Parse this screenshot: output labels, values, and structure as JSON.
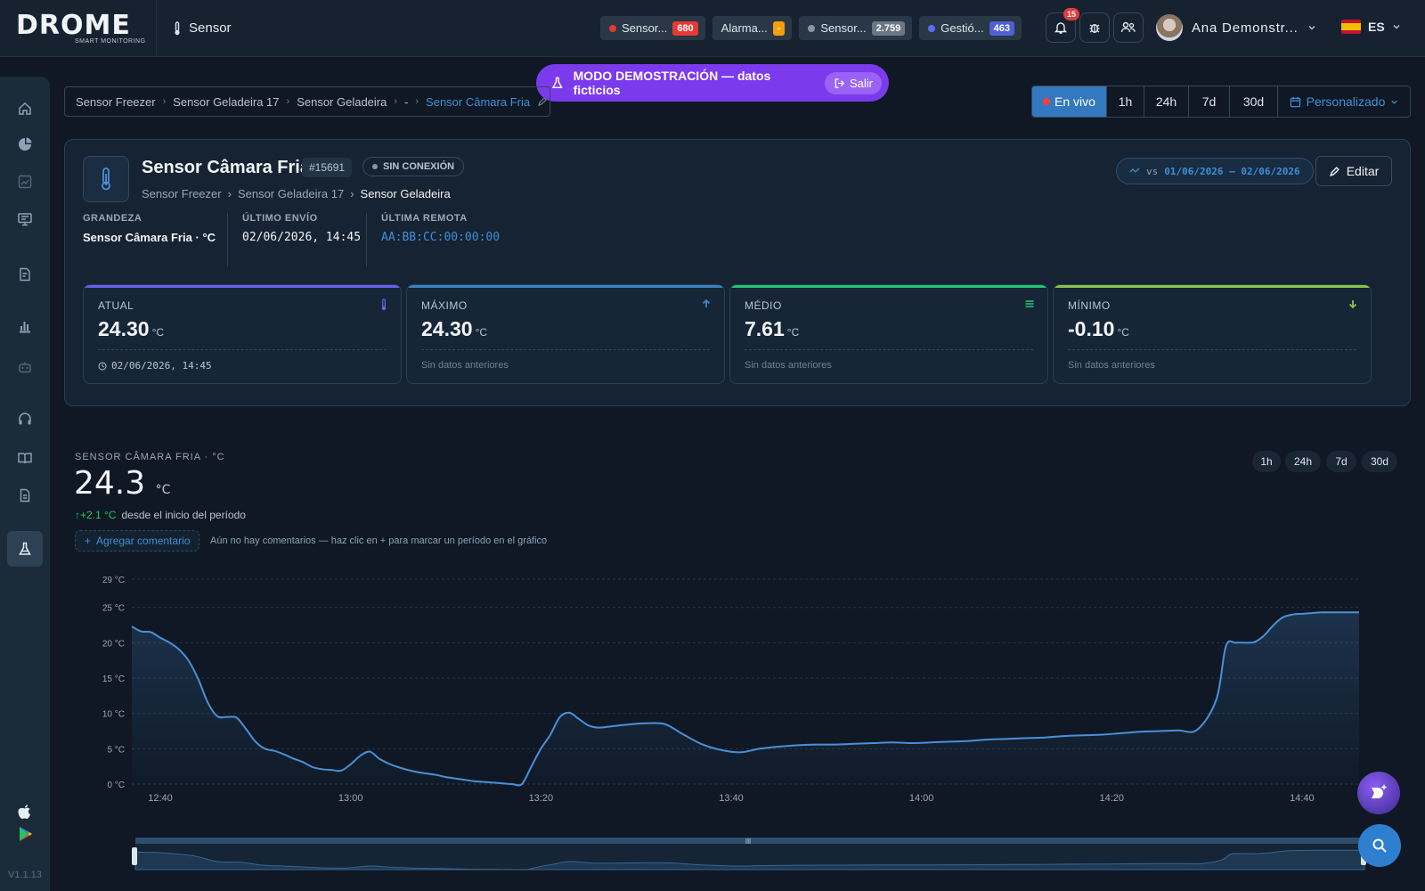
{
  "app": {
    "logo_text": "DROME",
    "logo_sub": "SMART MONITORING",
    "page_title": "Sensor",
    "version": "V1.1.13"
  },
  "header": {
    "pills": [
      {
        "label": "Sensor...",
        "badge": "680",
        "dot": "#e53935",
        "badge_color": "#e53935"
      },
      {
        "label": "Alarma...",
        "badge": "-",
        "dot": "",
        "badge_color": "#f59e0b"
      },
      {
        "label": "Sensor...",
        "badge": "2.759",
        "dot": "#8a96a3",
        "badge_color": "#6b7785"
      },
      {
        "label": "Gestió...",
        "badge": "463",
        "dot": "#5b6cf0",
        "badge_color": "#4f5fd6"
      }
    ],
    "notifications_count": "15",
    "user_name": "Ana Demonstr...",
    "language": "ES"
  },
  "demo_banner": {
    "text": "MODO DEMOSTRACIÓN — datos ficticios",
    "exit_label": "Salir"
  },
  "breadcrumb": [
    "Sensor Freezer",
    "Sensor Geladeira 17",
    "Sensor Geladeira",
    "-",
    "Sensor Câmara Fria"
  ],
  "range": {
    "live_label": "En vivo",
    "options": [
      "1h",
      "24h",
      "7d",
      "30d"
    ],
    "custom_label": "Personalizado"
  },
  "sensor": {
    "name": "Sensor Câmara Fria",
    "id": "#15691",
    "status": "SIN CONEXIÓN",
    "path": [
      "Sensor Freezer",
      "Sensor Geladeira 17",
      "Sensor Geladeira"
    ],
    "compare_prefix": "vs",
    "compare_range": "01/06/2026 — 02/06/2026",
    "edit_label": "Editar",
    "meta": {
      "magnitude_label": "GRANDEZA",
      "magnitude_value": "Sensor Câmara Fria · °C",
      "last_send_label": "ÚLTIMO ENVÍO",
      "last_send_value": "02/06/2026, 14:45",
      "remote_label": "ÚLTIMA REMOTA",
      "remote_value": "AA:BB:CC:00:00:00"
    },
    "stats": [
      {
        "label": "ATUAL",
        "value": "24.30",
        "unit": "°C",
        "foot": "02/06/2026, 14:45",
        "accent": "#6d5cf0",
        "icon": "thermometer-icon"
      },
      {
        "label": "MÁXIMO",
        "value": "24.30",
        "unit": "°C",
        "foot": "Sin datos anteriores",
        "accent": "#3b82c4",
        "icon": "arrow-up-icon"
      },
      {
        "label": "MÉDIO",
        "value": "7.61",
        "unit": "°C",
        "foot": "Sin datos anteriores",
        "accent": "#22c57a",
        "icon": "equals-icon"
      },
      {
        "label": "MÍNIMO",
        "value": "-0.10",
        "unit": "°C",
        "foot": "Sin datos anteriores",
        "accent": "#8bc34a",
        "icon": "arrow-down-icon"
      }
    ]
  },
  "chart_panel": {
    "heading": "SENSOR CÂMARA FRIA · °C",
    "current_value": "24.3",
    "unit": "°C",
    "delta": "+2.1 °C",
    "delta_text": "desde el inicio del período",
    "comment_button": "Agregar comentario",
    "comment_hint": "Aún no hay comentarios — haz clic en + para marcar un período en el gráfico",
    "ranges": [
      "1h",
      "24h",
      "7d",
      "30d"
    ]
  },
  "chart_data": {
    "type": "line",
    "x_ticks": [
      "12:40",
      "13:00",
      "13:20",
      "13:40",
      "14:00",
      "14:20",
      "14:40"
    ],
    "y_ticks": [
      "0 °C",
      "5 °C",
      "10 °C",
      "15 °C",
      "20 °C",
      "25 °C",
      "29 °C"
    ],
    "ylim": [
      0,
      29
    ],
    "x_minutes_start": "12:37",
    "series": [
      {
        "color": "#4a90d9",
        "x": [
          0,
          1,
          2,
          3,
          4,
          5,
          6,
          7,
          8,
          9,
          10,
          11,
          12,
          13,
          14,
          15,
          16,
          17,
          18,
          19,
          20,
          21,
          22,
          23,
          24,
          25,
          26,
          27,
          28,
          29,
          30,
          31,
          32,
          33,
          34,
          35,
          36,
          37,
          38,
          39,
          40,
          41,
          42,
          43,
          44,
          45,
          46,
          47,
          48,
          49,
          50,
          52,
          54,
          56,
          58,
          60,
          62,
          64,
          66,
          68,
          70,
          72,
          74,
          76,
          78,
          80,
          82,
          84,
          86,
          88,
          90,
          92,
          94,
          96,
          98,
          100,
          102,
          104,
          106,
          108,
          110,
          112,
          114,
          115,
          116,
          117,
          118,
          119,
          120,
          121,
          122,
          123,
          124,
          125,
          126,
          127,
          128,
          129
        ],
        "values": [
          22.3,
          21.6,
          21.5,
          20.7,
          20.0,
          19.0,
          17.4,
          14.8,
          11.5,
          9.6,
          9.5,
          9.4,
          7.8,
          6.0,
          5.0,
          4.7,
          4.2,
          3.6,
          3.1,
          2.4,
          2.1,
          2.0,
          1.9,
          2.8,
          4.0,
          4.6,
          3.6,
          2.9,
          2.4,
          2.0,
          1.7,
          1.5,
          1.3,
          1.0,
          0.8,
          0.6,
          0.4,
          0.3,
          0.2,
          0.1,
          0.0,
          0.0,
          2.5,
          5.0,
          7.0,
          9.5,
          10.1,
          9.2,
          8.3,
          8.0,
          8.1,
          8.4,
          8.6,
          8.5,
          7.0,
          5.6,
          4.8,
          4.5,
          5.0,
          5.3,
          5.5,
          5.6,
          5.6,
          5.7,
          5.8,
          5.9,
          5.8,
          5.9,
          6.0,
          6.1,
          6.3,
          6.4,
          6.5,
          6.6,
          6.8,
          6.9,
          7.0,
          7.2,
          7.4,
          7.5,
          7.6,
          7.7,
          12.0,
          19.5,
          20.0,
          20.0,
          20.1,
          21.0,
          22.5,
          23.6,
          24.0,
          24.1,
          24.2,
          24.3,
          24.3,
          24.3,
          24.3,
          24.3
        ]
      }
    ]
  }
}
